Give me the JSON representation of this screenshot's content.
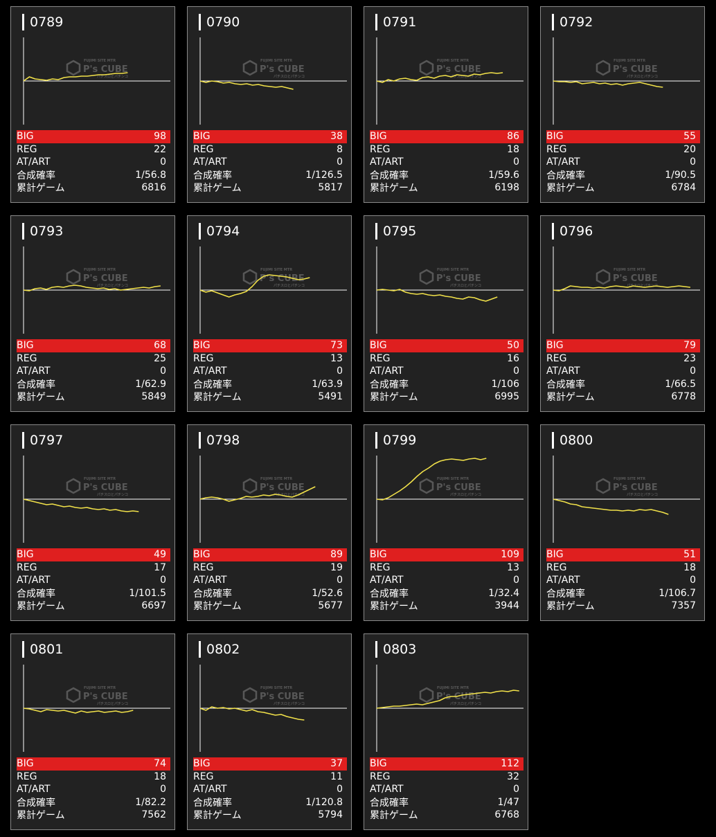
{
  "labels": {
    "big": "BIG",
    "reg": "REG",
    "atart": "AT/ART",
    "combined": "合成確率",
    "total": "累計ゲーム"
  },
  "watermark": {
    "top": "FUJIMI SITE MTR",
    "brand": "P's CUBE",
    "bottom": "パチスロとパチンコ"
  },
  "colors": {
    "line": "#f2e24a",
    "big_row": "#df1f1f",
    "card_bg": "#222222",
    "axis": "#ffffff"
  },
  "machines": [
    {
      "id": "0789",
      "big": "98",
      "reg": "22",
      "atart": "0",
      "combined": "1/56.8",
      "total": "6816",
      "trend": [
        0,
        6,
        3,
        2,
        1,
        3,
        2,
        5,
        6,
        6,
        7,
        7,
        8,
        9,
        9,
        10,
        11,
        11,
        12
      ]
    },
    {
      "id": "0790",
      "big": "38",
      "reg": "8",
      "atart": "0",
      "combined": "1/126.5",
      "total": "5817",
      "trend": [
        0,
        -2,
        0,
        -1,
        -3,
        -2,
        -4,
        -5,
        -4,
        -6,
        -5,
        -7,
        -8,
        -9,
        -8,
        -10,
        -12
      ]
    },
    {
      "id": "0791",
      "big": "86",
      "reg": "18",
      "atart": "0",
      "combined": "1/59.6",
      "total": "6198",
      "trend": [
        0,
        -2,
        2,
        0,
        3,
        4,
        2,
        1,
        5,
        6,
        4,
        7,
        8,
        6,
        9,
        8,
        7,
        10,
        9,
        11,
        12,
        11,
        12
      ]
    },
    {
      "id": "0792",
      "big": "55",
      "reg": "20",
      "atart": "0",
      "combined": "1/90.5",
      "total": "6784",
      "trend": [
        0,
        -1,
        -1,
        -2,
        -1,
        -4,
        -3,
        -2,
        -4,
        -3,
        -5,
        -4,
        -6,
        -4,
        -3,
        -2,
        -4,
        -6,
        -8,
        -9
      ]
    },
    {
      "id": "0793",
      "big": "68",
      "reg": "25",
      "atart": "0",
      "combined": "1/62.9",
      "total": "5849",
      "trend": [
        0,
        -1,
        2,
        3,
        1,
        4,
        5,
        4,
        6,
        7,
        6,
        4,
        3,
        2,
        3,
        1,
        2,
        0,
        1,
        2,
        3,
        4,
        3,
        5,
        6
      ]
    },
    {
      "id": "0794",
      "big": "73",
      "reg": "13",
      "atart": "0",
      "combined": "1/63.9",
      "total": "5491",
      "trend": [
        0,
        -3,
        -1,
        -4,
        -7,
        -10,
        -7,
        -5,
        -2,
        5,
        14,
        20,
        22,
        21,
        20,
        19,
        17,
        15,
        16,
        18
      ]
    },
    {
      "id": "0795",
      "big": "50",
      "reg": "16",
      "atart": "0",
      "combined": "1/106",
      "total": "6995",
      "trend": [
        0,
        1,
        0,
        -1,
        1,
        -3,
        -5,
        -6,
        -5,
        -7,
        -8,
        -7,
        -9,
        -10,
        -12,
        -13,
        -10,
        -11,
        -14,
        -16,
        -13,
        -10
      ]
    },
    {
      "id": "0796",
      "big": "79",
      "reg": "23",
      "atart": "0",
      "combined": "1/66.5",
      "total": "6778",
      "trend": [
        0,
        -1,
        2,
        6,
        5,
        4,
        4,
        3,
        4,
        3,
        5,
        6,
        5,
        4,
        6,
        5,
        4,
        5,
        6,
        5,
        4,
        5,
        6,
        5,
        4
      ]
    },
    {
      "id": "0797",
      "big": "49",
      "reg": "17",
      "atart": "0",
      "combined": "1/101.5",
      "total": "6697",
      "trend": [
        0,
        -2,
        -4,
        -6,
        -8,
        -7,
        -9,
        -11,
        -10,
        -12,
        -13,
        -12,
        -14,
        -15,
        -14,
        -16,
        -15,
        -17,
        -18,
        -17,
        -18
      ]
    },
    {
      "id": "0798",
      "big": "89",
      "reg": "19",
      "atart": "0",
      "combined": "1/52.6",
      "total": "5677",
      "trend": [
        0,
        2,
        3,
        2,
        0,
        -3,
        -1,
        1,
        4,
        3,
        4,
        6,
        5,
        7,
        6,
        4,
        3,
        6,
        10,
        14,
        18
      ]
    },
    {
      "id": "0799",
      "big": "109",
      "reg": "13",
      "atart": "0",
      "combined": "1/32.4",
      "total": "3944",
      "trend": [
        0,
        -1,
        2,
        7,
        12,
        18,
        25,
        33,
        40,
        45,
        51,
        55,
        57,
        58,
        57,
        56,
        58,
        59,
        57,
        59
      ]
    },
    {
      "id": "0800",
      "big": "51",
      "reg": "18",
      "atart": "0",
      "combined": "1/106.7",
      "total": "7357",
      "trend": [
        0,
        -2,
        -4,
        -7,
        -8,
        -11,
        -12,
        -13,
        -14,
        -15,
        -16,
        -16,
        -17,
        -16,
        -17,
        -15,
        -16,
        -15,
        -17,
        -19,
        -22
      ]
    },
    {
      "id": "0801",
      "big": "74",
      "reg": "18",
      "atart": "0",
      "combined": "1/82.2",
      "total": "7562",
      "trend": [
        0,
        -1,
        -3,
        -5,
        -2,
        -3,
        -4,
        -3,
        -5,
        -7,
        -4,
        -6,
        -5,
        -4,
        -6,
        -5,
        -4,
        -6,
        -5,
        -3
      ]
    },
    {
      "id": "0802",
      "big": "37",
      "reg": "11",
      "atart": "0",
      "combined": "1/120.8",
      "total": "5794",
      "trend": [
        0,
        -3,
        2,
        0,
        1,
        -1,
        0,
        -2,
        -4,
        -2,
        -5,
        -6,
        -8,
        -10,
        -9,
        -12,
        -14,
        -16,
        -17
      ]
    },
    {
      "id": "0803",
      "big": "112",
      "reg": "32",
      "atart": "0",
      "combined": "1/47",
      "total": "6768",
      "trend": [
        0,
        1,
        2,
        3,
        3,
        4,
        5,
        6,
        5,
        7,
        9,
        11,
        15,
        17,
        17,
        19,
        20,
        21,
        22,
        23,
        22,
        24,
        25,
        24,
        26,
        25
      ]
    }
  ]
}
